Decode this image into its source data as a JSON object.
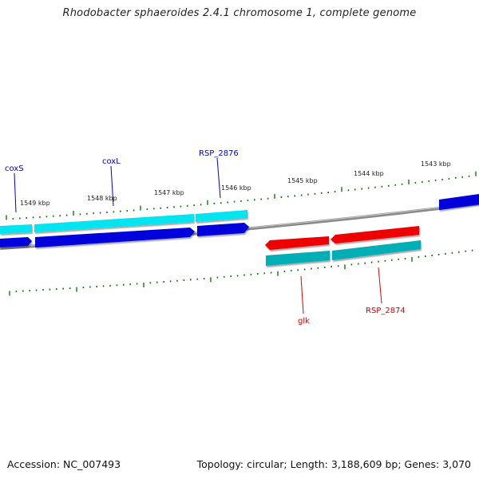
{
  "title": "Rhodobacter sphaeroides 2.4.1 chromosome 1, complete genome",
  "accession_label": "Accession: NC_007493",
  "stats_label": "Topology: circular; Length: 3,188,609 bp; Genes: 3,070",
  "colors": {
    "forward_gene": "#0000dd",
    "reverse_gene": "#ee0000",
    "forward_cds": "#00e5f0",
    "reverse_cds": "#00aeb5",
    "backbone": "#8a8a8a",
    "tick": "#117711",
    "forward_label": "#0000cc",
    "reverse_label": "#dd0000"
  },
  "tick_labels": [
    "1549 kbp",
    "1548 kbp",
    "1547 kbp",
    "1546 kbp",
    "1545 kbp",
    "1544 kbp",
    "1543 kbp"
  ],
  "genes": [
    {
      "name": "coxS",
      "strand": "forward"
    },
    {
      "name": "coxL",
      "strand": "forward"
    },
    {
      "name": "RSP_2876",
      "strand": "forward"
    },
    {
      "name": "glk",
      "strand": "reverse"
    },
    {
      "name": "RSP_2874",
      "strand": "reverse"
    }
  ]
}
